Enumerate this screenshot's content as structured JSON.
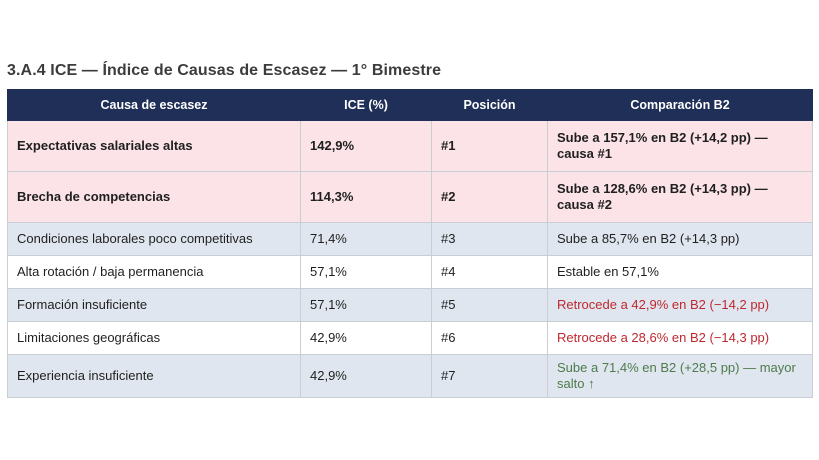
{
  "title": "3.A.4 ICE — Índice de Causas de Escasez — 1° Bimestre",
  "headers": [
    "Causa de escasez",
    "ICE (%)",
    "Posición",
    "Comparación B2"
  ],
  "rows": [
    {
      "causa": "Expectativas salariales altas",
      "ice": "142,9%",
      "pos": "#1",
      "comp": "Sube a 157,1% en B2 (+14,2 pp) — causa #1"
    },
    {
      "causa": "Brecha de competencias",
      "ice": "114,3%",
      "pos": "#2",
      "comp": "Sube a 128,6% en B2 (+14,3 pp) — causa #2"
    },
    {
      "causa": "Condiciones laborales poco competitivas",
      "ice": "71,4%",
      "pos": "#3",
      "comp": "Sube a 85,7% en B2 (+14,3 pp)"
    },
    {
      "causa": "Alta rotación / baja permanencia",
      "ice": "57,1%",
      "pos": "#4",
      "comp": "Estable en 57,1%"
    },
    {
      "causa": "Formación insuficiente",
      "ice": "57,1%",
      "pos": "#5",
      "comp": "Retrocede a 42,9% en B2 (−14,2 pp)"
    },
    {
      "causa": "Limitaciones geográficas",
      "ice": "42,9%",
      "pos": "#6",
      "comp": "Retrocede a 28,6% en B2 (−14,3 pp)"
    },
    {
      "causa": "Experiencia insuficiente",
      "ice": "42,9%",
      "pos": "#7",
      "comp": "Sube a 71,4% en B2 (+28,5 pp) — mayor salto ↑"
    }
  ],
  "colors": {
    "header_bg": "#1f2f57",
    "highlight_bg": "#fbe3e8",
    "alt_bg": "#dfe6ef",
    "decline_text": "#c0282f",
    "jump_text": "#4e7b4a"
  }
}
